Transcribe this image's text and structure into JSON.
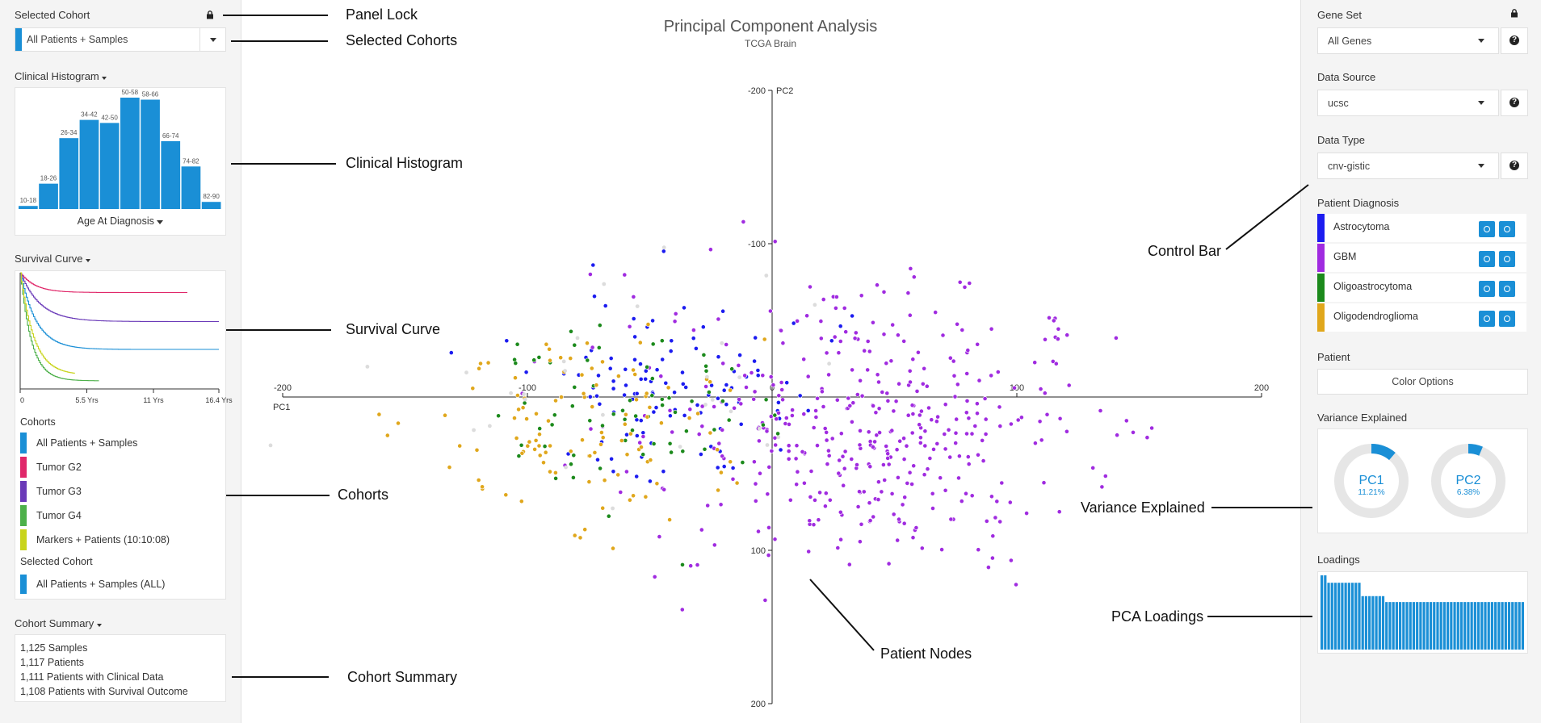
{
  "colors": {
    "accent": "#1a8fd6",
    "astrocytoma": "#1c1cf0",
    "gbm": "#a02be0",
    "oligoastrocytoma": "#1c8a1c",
    "oligodendroglioma": "#e0a71c",
    "tumor_g2": "#e0286a",
    "tumor_g3": "#6a3ab8",
    "tumor_g4": "#4db04a",
    "markers": "#c8d41c"
  },
  "left": {
    "selected_cohort_label": "Selected Cohort",
    "selected_cohort_value": "All Patients + Samples",
    "histogram_label": "Clinical Histogram",
    "histogram_xlabel": "Age At Diagnosis",
    "histogram_bins": [
      {
        "label": "10-18",
        "value": 3
      },
      {
        "label": "18-26",
        "value": 25
      },
      {
        "label": "26-34",
        "value": 70
      },
      {
        "label": "34-42",
        "value": 88
      },
      {
        "label": "42-50",
        "value": 85
      },
      {
        "label": "50-58",
        "value": 110
      },
      {
        "label": "58-66",
        "value": 108
      },
      {
        "label": "66-74",
        "value": 67
      },
      {
        "label": "74-82",
        "value": 42
      },
      {
        "label": "82-90",
        "value": 7
      }
    ],
    "survival_label": "Survival Curve",
    "survival_ticks": [
      "0",
      "5.5 Yrs",
      "11 Yrs",
      "16.4 Yrs"
    ],
    "cohorts_label": "Cohorts",
    "cohorts": [
      {
        "name": "All Patients + Samples",
        "color": "#1a8fd6"
      },
      {
        "name": "Tumor G2",
        "color": "#e0286a"
      },
      {
        "name": "Tumor G3",
        "color": "#6a3ab8"
      },
      {
        "name": "Tumor G4",
        "color": "#4db04a"
      },
      {
        "name": "Markers + Patients (10:10:08)",
        "color": "#c8d41c"
      }
    ],
    "selected_cohort_sub_label": "Selected Cohort",
    "selected_cohort_sub_value": "All Patients + Samples (ALL)",
    "summary_label": "Cohort Summary",
    "summary_lines": [
      "1,125 Samples",
      "1,117 Patients",
      "1,111 Patients with Clinical Data",
      "1,108 Patients with Survival Outcome"
    ]
  },
  "chart_data": {
    "type": "scatter",
    "title": "Principal Component Analysis",
    "subtitle": "TCGA Brain",
    "xlabel": "PC1",
    "ylabel": "PC2",
    "xlim": [
      -200,
      200
    ],
    "ylim": [
      -200,
      200
    ],
    "x_ticks": [
      "-200",
      "-100",
      "0",
      "100",
      "200"
    ],
    "y_ticks": [
      "-200",
      "-100",
      "100",
      "200"
    ],
    "series": [
      {
        "name": "Astrocytoma",
        "center": [
          -40,
          -10
        ],
        "spread": [
          30,
          30
        ],
        "count": 110
      },
      {
        "name": "GBM",
        "center": [
          35,
          20
        ],
        "spread": [
          45,
          45
        ],
        "count": 420
      },
      {
        "name": "Oligoastrocytoma",
        "center": [
          -60,
          10
        ],
        "spread": [
          35,
          30
        ],
        "count": 70
      },
      {
        "name": "Oligodendroglioma",
        "center": [
          -80,
          25
        ],
        "spread": [
          30,
          30
        ],
        "count": 110
      }
    ]
  },
  "right": {
    "gene_set_label": "Gene Set",
    "gene_set_value": "All Genes",
    "data_source_label": "Data Source",
    "data_source_value": "ucsc",
    "data_type_label": "Data Type",
    "data_type_value": "cnv-gistic",
    "diagnosis_label": "Patient Diagnosis",
    "diagnoses": [
      {
        "name": "Astrocytoma",
        "color": "#1c1cf0"
      },
      {
        "name": "GBM",
        "color": "#a02be0"
      },
      {
        "name": "Oligoastrocytoma",
        "color": "#1c8a1c"
      },
      {
        "name": "Oligodendroglioma",
        "color": "#e0a71c"
      }
    ],
    "patient_label": "Patient",
    "color_options_label": "Color Options",
    "variance_label": "Variance Explained",
    "pc1": {
      "name": "PC1",
      "value": "11.21%",
      "fraction": 0.1121
    },
    "pc2": {
      "name": "PC2",
      "value": "6.38%",
      "fraction": 0.0638
    },
    "loadings_label": "Loadings",
    "loadings": [
      100,
      100,
      90,
      90,
      90,
      90,
      90,
      90,
      90,
      90,
      90,
      90,
      72,
      72,
      72,
      72,
      72,
      72,
      72,
      64,
      64,
      64,
      64,
      64,
      64,
      64,
      64,
      64,
      64,
      64,
      64,
      64,
      64,
      64,
      64,
      64,
      64,
      64,
      64,
      64,
      64,
      64,
      64,
      64,
      64,
      64,
      64,
      64,
      64,
      64,
      64,
      64,
      64,
      64,
      64,
      64,
      64,
      64,
      64,
      64
    ]
  },
  "callouts": {
    "panel_lock": "Panel Lock",
    "selected_cohorts": "Selected Cohorts",
    "clinical_histogram": "Clinical Histogram",
    "survival_curve": "Survival Curve",
    "cohorts": "Cohorts",
    "cohort_summary": "Cohort Summary",
    "control_bar": "Control Bar",
    "variance_explained": "Variance Explained",
    "pca_loadings": "PCA Loadings",
    "patient_nodes": "Patient Nodes"
  }
}
